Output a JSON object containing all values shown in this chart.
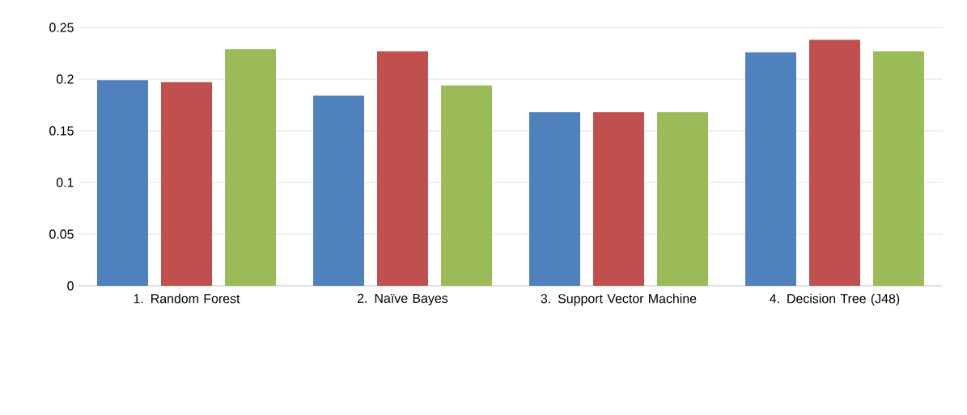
{
  "chart_data": {
    "type": "bar",
    "categories": [
      "1. Random Forest",
      "2. Naïve Bayes",
      "3. Support Vector Machine",
      "4. Decision Tree (J48)"
    ],
    "series": [
      {
        "color": "#4f81bd",
        "values": [
          0.199,
          0.184,
          0.168,
          0.226
        ]
      },
      {
        "color": "#c0504d",
        "values": [
          0.197,
          0.227,
          0.168,
          0.238
        ]
      },
      {
        "color": "#9bbb59",
        "values": [
          0.229,
          0.194,
          0.168,
          0.227
        ]
      }
    ],
    "ylim": [
      0,
      0.25
    ],
    "yticks": [
      0,
      0.05,
      0.1,
      0.15,
      0.2,
      0.25
    ],
    "grid": "y"
  }
}
